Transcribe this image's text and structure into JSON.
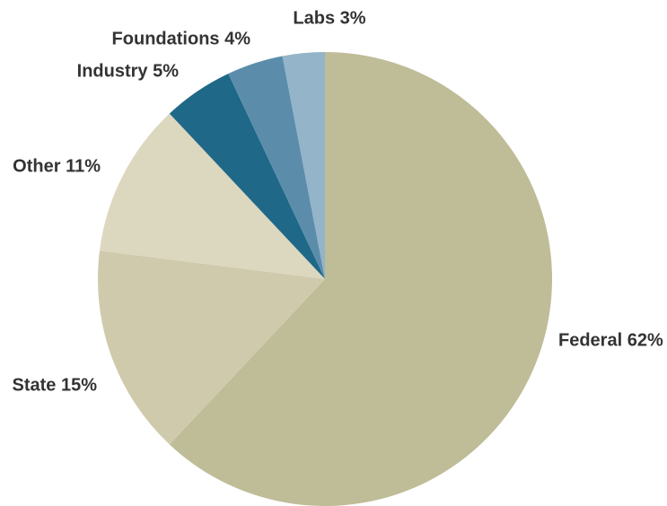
{
  "chart_data": {
    "type": "pie",
    "values": [
      62,
      15,
      11,
      5,
      4,
      3
    ],
    "value_labels": [
      "Federal 62%",
      "State 15%",
      "Other 11%",
      "Industry 5%",
      "Foundations 4%",
      "Labs 3%"
    ],
    "colors": [
      "#bfbc98",
      "#cfcaac",
      "#dcd7bf",
      "#1f6887",
      "#5b8dab",
      "#94b4c9"
    ]
  }
}
